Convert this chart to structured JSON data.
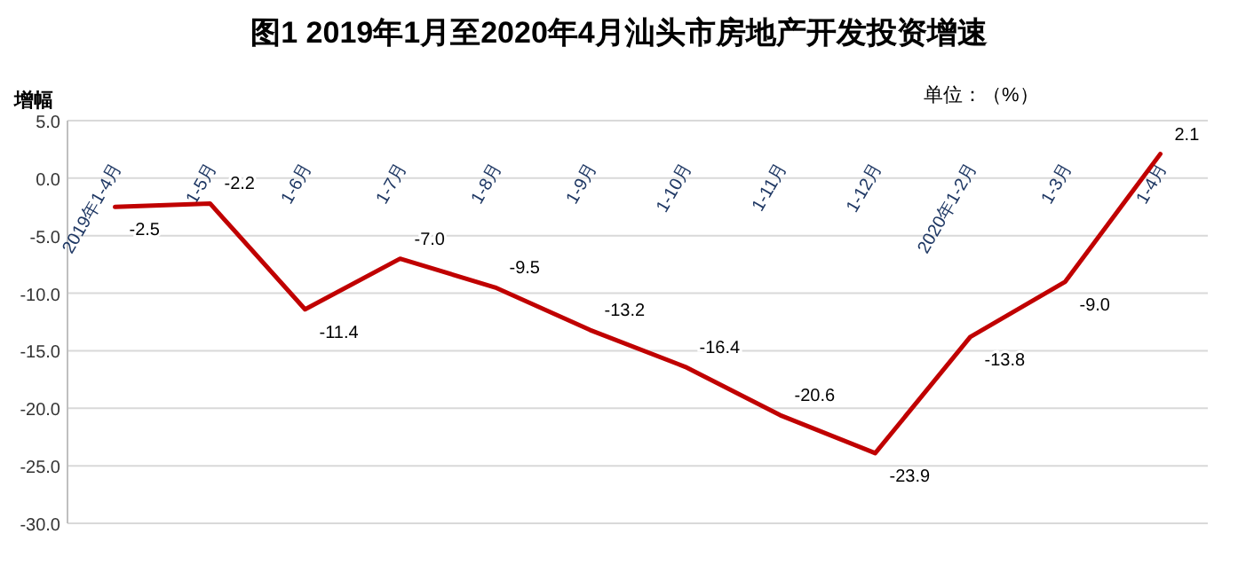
{
  "chart_data": {
    "type": "line",
    "title": "图1 2019年1月至2020年4月汕头市房地产开发投资增速",
    "ylabel": "增幅",
    "annotations": [
      "单位：（%）"
    ],
    "categories": [
      "2019年1-4月",
      "1-5月",
      "1-6月",
      "1-7月",
      "1-8月",
      "1-9月",
      "1-10月",
      "1-11月",
      "1-12月",
      "2020年1-2月",
      "1-3月",
      "1-4月"
    ],
    "series": [
      {
        "color": "#c00000",
        "values": [
          -2.5,
          -2.2,
          -11.4,
          -7.0,
          -9.5,
          -13.2,
          -16.4,
          -20.6,
          -23.9,
          -13.8,
          -9.0,
          2.1
        ],
        "value_labels": [
          "-2.5",
          "-2.2",
          "-11.4",
          "-7.0",
          "-9.5",
          "-13.2",
          "-16.4",
          "-20.6",
          "-23.9",
          "-13.8",
          "-9.0",
          "2.1"
        ]
      }
    ],
    "ylim": [
      -30,
      5
    ],
    "yticks": [
      {
        "value": 5,
        "label": "5.0"
      },
      {
        "value": 0,
        "label": "0.0"
      },
      {
        "value": -5,
        "label": "-5.0"
      },
      {
        "value": -10,
        "label": "-10.0"
      },
      {
        "value": -15,
        "label": "-15.0"
      },
      {
        "value": -20,
        "label": "-20.0"
      },
      {
        "value": -25,
        "label": "-25.0"
      },
      {
        "value": -30,
        "label": "-30.0"
      }
    ],
    "grid": "y",
    "marker": "none",
    "line_style": "solid"
  }
}
